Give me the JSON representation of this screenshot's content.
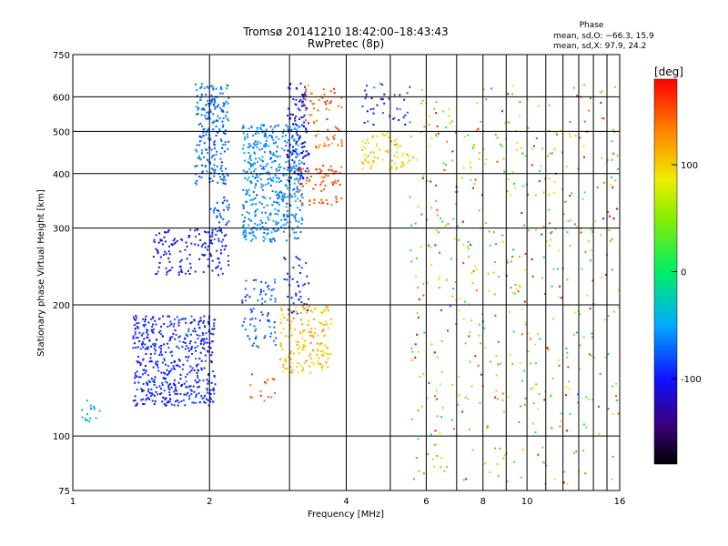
{
  "chart_data": {
    "type": "scatter",
    "title": "Tromsø 20141210 18:42:00–18:43:43",
    "subtitle": "RwPretec (8p)",
    "xlabel": "Frequency [MHz]",
    "ylabel": "Stationary phase Virtual Height [km]",
    "x_scale": "log",
    "y_scale": "log",
    "xlim": [
      1,
      16
    ],
    "ylim": [
      75,
      750
    ],
    "x_ticks": [
      1,
      2,
      4,
      6,
      8,
      10,
      16
    ],
    "x_ticks_minor": [
      3,
      5,
      7,
      9,
      11,
      12,
      13,
      14,
      15
    ],
    "y_ticks": [
      75,
      100,
      200,
      300,
      400,
      500,
      600,
      750
    ],
    "grid": true,
    "phase_stats": {
      "title": "Phase",
      "line1": "mean, sd,O:  −66.3, 15.9",
      "line2": "mean, sd,X:  97.9, 24.2"
    },
    "colorbar": {
      "label": "[deg]",
      "min": -180,
      "max": 180,
      "ticks": [
        100,
        0,
        -100
      ],
      "colormap": "rainbow"
    },
    "clusters": [
      {
        "f_range": [
          1.0,
          1.15
        ],
        "h_range": [
          108,
          122
        ],
        "phase_mean": -40,
        "phase_sd": 15,
        "density": 0.4
      },
      {
        "f_range": [
          1.35,
          2.05
        ],
        "h_range": [
          118,
          190
        ],
        "phase_mean": -95,
        "phase_sd": 18,
        "density": 1.0
      },
      {
        "f_range": [
          1.5,
          2.2
        ],
        "h_range": [
          235,
          300
        ],
        "phase_mean": -100,
        "phase_sd": 15,
        "density": 0.6
      },
      {
        "f_range": [
          1.85,
          2.2
        ],
        "h_range": [
          380,
          650
        ],
        "phase_mean": -70,
        "phase_sd": 12,
        "density": 1.0
      },
      {
        "f_range": [
          2.0,
          2.2
        ],
        "h_range": [
          280,
          360
        ],
        "phase_mean": -80,
        "phase_sd": 15,
        "density": 0.6
      },
      {
        "f_range": [
          2.35,
          3.2
        ],
        "h_range": [
          280,
          520
        ],
        "phase_mean": -60,
        "phase_sd": 15,
        "density": 1.0
      },
      {
        "f_range": [
          2.35,
          2.8
        ],
        "h_range": [
          160,
          230
        ],
        "phase_mean": -75,
        "phase_sd": 15,
        "density": 0.5
      },
      {
        "f_range": [
          2.45,
          2.8
        ],
        "h_range": [
          120,
          140
        ],
        "phase_mean": 150,
        "phase_sd": 15,
        "density": 0.3
      },
      {
        "f_range": [
          2.95,
          3.3
        ],
        "h_range": [
          380,
          650
        ],
        "phase_mean": -100,
        "phase_sd": 12,
        "density": 0.8
      },
      {
        "f_range": [
          2.9,
          3.3
        ],
        "h_range": [
          190,
          260
        ],
        "phase_mean": -95,
        "phase_sd": 15,
        "density": 0.4
      },
      {
        "f_range": [
          3.1,
          3.9
        ],
        "h_range": [
          340,
          420
        ],
        "phase_mean": 150,
        "phase_sd": 15,
        "density": 0.6
      },
      {
        "f_range": [
          3.2,
          3.9
        ],
        "h_range": [
          460,
          640
        ],
        "phase_mean": 145,
        "phase_sd": 25,
        "density": 0.4
      },
      {
        "f_range": [
          2.85,
          3.7
        ],
        "h_range": [
          140,
          200
        ],
        "phase_mean": 105,
        "phase_sd": 20,
        "density": 0.7
      },
      {
        "f_range": [
          4.3,
          5.5
        ],
        "h_range": [
          410,
          500
        ],
        "phase_mean": 100,
        "phase_sd": 18,
        "density": 0.6
      },
      {
        "f_range": [
          4.3,
          5.5
        ],
        "h_range": [
          520,
          650
        ],
        "phase_mean": -90,
        "phase_sd": 30,
        "density": 0.3
      },
      {
        "f_range": [
          5.5,
          16
        ],
        "h_range": [
          78,
          650
        ],
        "phase_mean": 80,
        "phase_sd": 100,
        "density": 0.1
      }
    ]
  }
}
